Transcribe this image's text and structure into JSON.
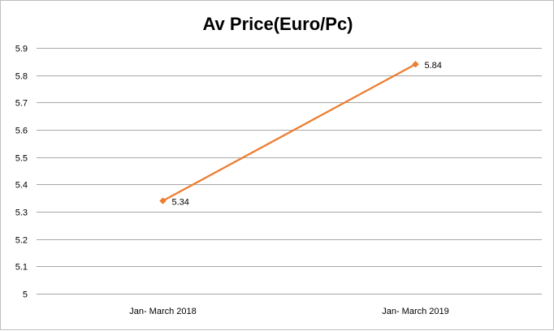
{
  "chart_data": {
    "type": "line",
    "title": "Av Price(Euro/Pc)",
    "xlabel": "",
    "ylabel": "",
    "categories": [
      "Jan- March 2018",
      "Jan- March 2019"
    ],
    "series": [
      {
        "values": [
          5.34,
          5.84
        ],
        "color": "#ed7d31",
        "marker": "diamond",
        "data_labels": [
          "5.34",
          "5.84"
        ]
      }
    ],
    "ylim": [
      5,
      5.9
    ],
    "yticks": [
      5,
      5.1,
      5.2,
      5.3,
      5.4,
      5.5,
      5.6,
      5.7,
      5.8,
      5.9
    ],
    "ytick_labels": [
      "5",
      "5.1",
      "5.2",
      "5.3",
      "5.4",
      "5.5",
      "5.6",
      "5.7",
      "5.8",
      "5.9"
    ],
    "grid": true,
    "legend": "none",
    "gridline_color": "#a6a6a6"
  }
}
